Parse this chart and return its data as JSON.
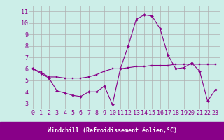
{
  "xlabel": "Windchill (Refroidissement éolien,°C)",
  "background_color": "#cceee8",
  "label_bg_color": "#880088",
  "grid_color": "#b0b0b0",
  "line_color": "#880088",
  "xlim": [
    -0.5,
    23.5
  ],
  "ylim": [
    2.5,
    11.5
  ],
  "yticks": [
    3,
    4,
    5,
    6,
    7,
    8,
    9,
    10,
    11
  ],
  "xticks": [
    0,
    1,
    2,
    3,
    4,
    5,
    6,
    7,
    8,
    9,
    10,
    11,
    12,
    13,
    14,
    15,
    16,
    17,
    18,
    19,
    20,
    21,
    22,
    23
  ],
  "series1_x": [
    0,
    1,
    2,
    3,
    4,
    5,
    6,
    7,
    8,
    9,
    10,
    11,
    12,
    13,
    14,
    15,
    16,
    17,
    18,
    19,
    20,
    21,
    22,
    23
  ],
  "series1_y": [
    6.0,
    5.7,
    5.3,
    5.3,
    5.2,
    5.2,
    5.2,
    5.3,
    5.5,
    5.8,
    6.0,
    6.0,
    6.1,
    6.2,
    6.2,
    6.3,
    6.3,
    6.3,
    6.4,
    6.4,
    6.4,
    6.4,
    6.4,
    6.4
  ],
  "series2_x": [
    0,
    1,
    2,
    3,
    4,
    5,
    6,
    7,
    8,
    9,
    10,
    11,
    12,
    13,
    14,
    15,
    16,
    17,
    18,
    19,
    20,
    21,
    22,
    23
  ],
  "series2_y": [
    6.0,
    5.6,
    5.2,
    4.1,
    3.9,
    3.7,
    3.6,
    4.0,
    4.0,
    4.5,
    2.9,
    6.0,
    8.0,
    10.3,
    10.7,
    10.6,
    9.5,
    7.2,
    6.0,
    6.1,
    6.5,
    5.8,
    3.2,
    4.2
  ],
  "tick_fontsize": 6.0,
  "xlabel_fontsize": 6.0
}
